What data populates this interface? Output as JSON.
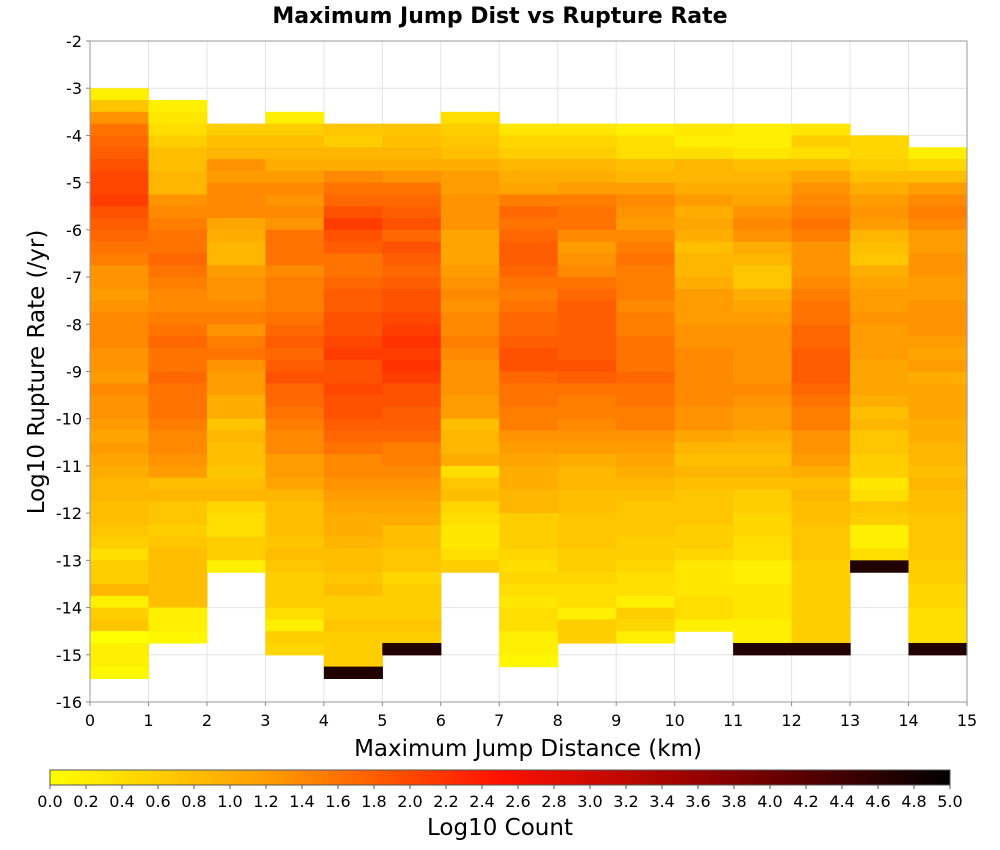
{
  "chart_data": {
    "type": "heatmap",
    "title": "Maximum Jump Dist vs Rupture Rate",
    "xlabel": "Maximum Jump Distance (km)",
    "ylabel": "Log10 Rupture Rate (/yr)",
    "xlim": [
      0,
      15
    ],
    "ylim": [
      -16,
      -2
    ],
    "x_ticks": [
      "0",
      "1",
      "2",
      "3",
      "4",
      "5",
      "6",
      "7",
      "8",
      "9",
      "10",
      "11",
      "12",
      "13",
      "14",
      "15"
    ],
    "y_ticks": [
      "-2",
      "-3",
      "-4",
      "-5",
      "-6",
      "-7",
      "-8",
      "-9",
      "-10",
      "-11",
      "-12",
      "-13",
      "-14",
      "-15",
      "-16"
    ],
    "grid": true,
    "x_bin_width": 1,
    "y_bin_height": 0.25,
    "colorbar": {
      "label": "Log10 Count",
      "range": [
        0,
        5
      ],
      "ticks": [
        "0.0",
        "0.2",
        "0.4",
        "0.6",
        "0.8",
        "1.0",
        "1.2",
        "1.4",
        "1.6",
        "1.8",
        "2.0",
        "2.2",
        "2.4",
        "2.6",
        "2.8",
        "3.0",
        "3.2",
        "3.4",
        "3.6",
        "3.8",
        "4.0",
        "4.2",
        "4.4",
        "4.6",
        "4.8",
        "5.0"
      ],
      "colors": [
        "#ffff00",
        "#ff9900",
        "#ff1100",
        "#880000",
        "#000000"
      ]
    },
    "columns": [
      {
        "x": 0,
        "y_top": -3.0,
        "values": [
          0.2,
          0.7,
          1.3,
          1.6,
          1.7,
          1.8,
          1.9,
          2.0,
          2.0,
          2.1,
          1.9,
          1.8,
          1.7,
          1.6,
          1.5,
          1.3,
          1.3,
          1.2,
          1.3,
          1.4,
          1.4,
          1.4,
          1.3,
          1.3,
          1.2,
          1.4,
          1.3,
          1.3,
          1.2,
          1.1,
          1.2,
          1.1,
          1.0,
          0.9,
          0.9,
          0.8,
          0.8,
          0.7,
          0.6,
          0.4,
          0.6,
          0.6,
          0.9,
          0.2,
          0.6,
          0.7,
          0.0,
          0.2,
          0.2,
          0.1,
          0.1,
          0.1
        ],
        "white": [
          -15.75,
          -15.5
        ]
      },
      {
        "x": 1,
        "y_top": -3.25,
        "values": [
          0.2,
          0.3,
          0.4,
          0.6,
          0.8,
          0.8,
          0.9,
          0.9,
          1.3,
          1.4,
          1.5,
          1.6,
          1.6,
          1.7,
          1.6,
          1.5,
          1.4,
          1.4,
          1.5,
          1.6,
          1.7,
          1.6,
          1.6,
          1.7,
          1.6,
          1.6,
          1.6,
          1.5,
          1.4,
          1.4,
          1.3,
          1.2,
          0.8,
          0.9,
          0.7,
          0.7,
          0.6,
          0.7,
          0.8,
          0.8,
          0.8,
          0.8,
          0.8,
          0.2,
          0.2,
          0.1
        ]
      },
      {
        "x": 2,
        "y_top": -3.75,
        "values": [
          0.6,
          0.8,
          0.9,
          1.3,
          1.2,
          1.4,
          1.4,
          1.4,
          1.1,
          1.0,
          0.9,
          0.9,
          1.2,
          1.3,
          1.3,
          1.4,
          1.5,
          1.3,
          1.5,
          1.6,
          1.3,
          1.2,
          1.2,
          1.0,
          1.0,
          0.7,
          0.9,
          0.8,
          0.8,
          0.7,
          0.8,
          0.9,
          0.5,
          0.4,
          0.4,
          0.6,
          0.6,
          0.2
        ],
        "white": [
          -14.5,
          -15.5,
          -15.25
        ]
      },
      {
        "x": 3,
        "y_top": -3.5,
        "values": [
          0.2,
          0.6,
          0.8,
          0.9,
          1.0,
          1.2,
          1.4,
          1.3,
          1.4,
          1.3,
          1.6,
          1.6,
          1.6,
          1.4,
          1.5,
          1.5,
          1.5,
          1.6,
          1.7,
          1.8,
          1.7,
          1.8,
          1.9,
          1.7,
          1.7,
          1.6,
          1.5,
          1.4,
          1.4,
          1.2,
          1.2,
          1.1,
          0.9,
          0.8,
          0.8,
          0.8,
          0.7,
          0.8,
          0.7,
          0.6,
          0.6,
          0.6,
          0.4,
          0.2,
          0.6,
          0.5
        ]
      },
      {
        "x": 4,
        "y_top": -3.75,
        "values": [
          0.7,
          0.6,
          0.9,
          1.0,
          1.4,
          1.6,
          1.7,
          1.9,
          2.1,
          1.9,
          1.8,
          1.6,
          1.6,
          1.7,
          1.8,
          1.8,
          1.9,
          1.9,
          2.0,
          2.1,
          1.9,
          1.9,
          2.0,
          1.9,
          1.9,
          1.8,
          1.7,
          1.6,
          1.4,
          1.4,
          1.3,
          1.2,
          1.1,
          1.0,
          1.0,
          0.9,
          0.8,
          0.8,
          0.7,
          0.8,
          0.6,
          0.6,
          0.7,
          0.6,
          0.6,
          0.6,
          4.7
        ]
      },
      {
        "x": 5,
        "y_top": -3.75,
        "values": [
          0.7,
          0.8,
          0.9,
          1.0,
          1.3,
          1.6,
          1.7,
          1.8,
          1.9,
          1.7,
          1.9,
          1.8,
          1.7,
          1.8,
          1.9,
          1.9,
          2.0,
          2.1,
          2.2,
          2.1,
          2.2,
          2.1,
          1.9,
          1.9,
          1.8,
          1.8,
          1.7,
          1.5,
          1.5,
          1.4,
          1.3,
          1.2,
          1.1,
          1.0,
          0.8,
          0.8,
          0.7,
          0.7,
          0.5,
          0.6,
          0.6,
          0.6,
          0.7,
          0.6,
          4.7
        ]
      },
      {
        "x": 6,
        "y_top": -3.5,
        "values": [
          0.4,
          0.6,
          0.7,
          0.8,
          1.0,
          1.2,
          1.2,
          1.3,
          1.3,
          1.3,
          1.1,
          1.1,
          1.1,
          1.2,
          1.3,
          1.4,
          1.3,
          1.4,
          1.4,
          1.5,
          1.4,
          1.3,
          1.3,
          1.3,
          1.2,
          1.2,
          0.8,
          0.9,
          0.9,
          1.0,
          0.4,
          0.7,
          0.8,
          0.5,
          0.4,
          0.3,
          0.3,
          0.4,
          0.6
        ],
        "white": [
          -15.0,
          -15.25,
          -15.5
        ]
      },
      {
        "x": 7,
        "y_top": -3.75,
        "values": [
          0.3,
          0.5,
          0.6,
          0.9,
          1.0,
          1.1,
          1.5,
          1.7,
          1.6,
          1.7,
          1.8,
          1.8,
          1.7,
          1.6,
          1.5,
          1.6,
          1.7,
          1.7,
          1.8,
          1.9,
          1.9,
          1.7,
          1.6,
          1.6,
          1.5,
          1.5,
          1.3,
          1.2,
          1.1,
          1.0,
          1.0,
          0.9,
          0.9,
          0.6,
          0.6,
          0.6,
          0.5,
          0.4,
          0.5,
          0.4,
          0.3,
          0.4,
          0.4,
          0.2,
          0.2,
          0.1
        ]
      },
      {
        "x": 8,
        "y_top": -3.75,
        "values": [
          0.3,
          0.5,
          0.6,
          0.9,
          1.0,
          1.2,
          1.5,
          1.6,
          1.6,
          1.4,
          1.2,
          1.3,
          1.4,
          1.6,
          1.7,
          1.8,
          1.8,
          1.8,
          1.8,
          1.8,
          1.9,
          1.8,
          1.6,
          1.5,
          1.5,
          1.4,
          1.3,
          1.2,
          1.0,
          0.9,
          0.9,
          0.8,
          0.8,
          0.7,
          0.7,
          0.7,
          0.6,
          0.6,
          0.5,
          0.4,
          0.4,
          0.2,
          0.6,
          0.6
        ],
        "white": [
          -15.25
        ]
      },
      {
        "x": 9,
        "y_top": -3.75,
        "values": [
          0.2,
          0.4,
          0.4,
          0.8,
          0.9,
          1.2,
          1.4,
          1.3,
          1.2,
          1.4,
          1.5,
          1.6,
          1.5,
          1.5,
          1.5,
          1.4,
          1.5,
          1.5,
          1.6,
          1.6,
          1.6,
          1.7,
          1.6,
          1.6,
          1.5,
          1.5,
          1.3,
          1.2,
          1.1,
          1.0,
          0.9,
          0.8,
          0.7,
          0.7,
          0.7,
          0.6,
          0.6,
          0.5,
          0.4,
          0.4,
          0.2,
          0.6,
          0.5,
          0.2
        ],
        "white": [
          -15.5
        ]
      },
      {
        "x": 10,
        "y_top": -3.75,
        "values": [
          0.3,
          0.2,
          0.4,
          0.9,
          0.9,
          1.0,
          1.2,
          1.0,
          1.1,
          1.0,
          0.8,
          0.9,
          0.9,
          1.0,
          1.2,
          1.2,
          1.2,
          1.3,
          1.3,
          1.4,
          1.4,
          1.4,
          1.4,
          1.4,
          1.3,
          1.3,
          1.1,
          0.9,
          0.8,
          0.9,
          0.8,
          0.7,
          0.7,
          0.7,
          0.6,
          0.6,
          0.5,
          0.3,
          0.3,
          0.3,
          0.4,
          0.4,
          0.2
        ],
        "white": [
          -15.0,
          -15.5
        ]
      },
      {
        "x": 11,
        "y_top": -3.75,
        "values": [
          0.2,
          0.2,
          0.3,
          0.8,
          0.9,
          1.0,
          1.1,
          1.3,
          1.4,
          1.3,
          1.0,
          0.9,
          0.7,
          0.7,
          1.0,
          1.1,
          1.2,
          1.3,
          1.3,
          1.3,
          1.3,
          1.3,
          1.4,
          1.3,
          1.2,
          1.2,
          1.0,
          0.9,
          0.8,
          0.9,
          0.8,
          0.6,
          0.6,
          0.5,
          0.5,
          0.4,
          0.4,
          0.2,
          0.2,
          0.3,
          0.3,
          0.3,
          0.2,
          0.2,
          4.7
        ]
      },
      {
        "x": 12,
        "y_top": -3.75,
        "values": [
          0.3,
          0.6,
          0.4,
          0.8,
          1.1,
          1.3,
          1.4,
          1.5,
          1.6,
          1.5,
          1.3,
          1.3,
          1.3,
          1.4,
          1.5,
          1.6,
          1.6,
          1.7,
          1.7,
          1.8,
          1.8,
          1.8,
          1.7,
          1.6,
          1.5,
          1.5,
          1.3,
          1.3,
          1.2,
          1.0,
          0.8,
          0.9,
          0.8,
          0.8,
          0.7,
          0.7,
          0.7,
          0.6,
          0.6,
          0.6,
          0.6,
          0.6,
          0.6,
          0.6,
          4.7
        ]
      },
      {
        "x": 13,
        "y_top": -4.0,
        "values": [
          0.5,
          0.5,
          0.6,
          0.8,
          1.0,
          1.2,
          1.3,
          1.2,
          0.9,
          0.8,
          0.7,
          1.0,
          1.1,
          1.2,
          1.2,
          1.3,
          1.2,
          1.2,
          1.2,
          1.1,
          1.1,
          1.1,
          1.0,
          0.8,
          0.9,
          0.7,
          0.7,
          0.6,
          0.6,
          0.3,
          0.4,
          0.7,
          0.6
        ],
        "white": [
          -14.0,
          -14.25,
          -14.5,
          -15.25,
          -15.5
        ],
        "fill_after": [
          0.2,
          0.2,
          0.4,
          4.7
        ]
      },
      {
        "x": 14,
        "y_top": -4.25,
        "values": [
          0.2,
          0.5,
          0.8,
          1.2,
          1.4,
          1.5,
          1.4,
          1.2,
          1.2,
          1.3,
          1.3,
          1.2,
          1.2,
          1.3,
          1.3,
          1.3,
          1.2,
          1.1,
          1.2,
          1.0,
          1.1,
          1.1,
          1.1,
          1.0,
          1.0,
          0.9,
          0.9,
          0.8,
          0.9,
          0.8,
          0.8,
          0.7,
          0.7,
          0.7,
          0.7,
          0.6,
          0.6,
          0.5,
          0.5,
          0.4,
          0.4,
          0.4,
          4.7
        ]
      }
    ]
  }
}
